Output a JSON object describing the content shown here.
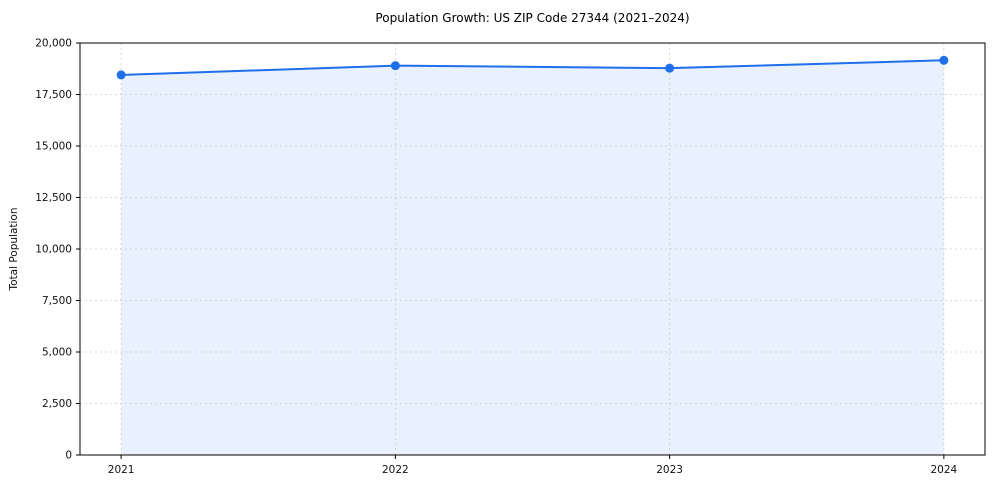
{
  "title": "Population Growth: US ZIP Code 27344 (2021–2024)",
  "chart_data": {
    "type": "line",
    "title": "Population Growth: US ZIP Code 27344 (2021–2024)",
    "x": [
      2021,
      2022,
      2023,
      2024
    ],
    "categories": [
      "2021",
      "2022",
      "2023",
      "2024"
    ],
    "series": [
      {
        "name": "Total Population",
        "values": [
          18450,
          18900,
          18780,
          19160
        ]
      }
    ],
    "xlabel": "",
    "ylabel": "Total Population",
    "ylim": [
      0,
      20000
    ],
    "yticks": [
      0,
      2500,
      5000,
      7500,
      10000,
      12500,
      15000,
      17500,
      20000
    ],
    "grid": true,
    "grid_style": "dashed",
    "legend": "none",
    "area_fill": true,
    "marker": "circle",
    "colors": {
      "line": "#1f6feb",
      "fill": "#e8f1fd",
      "grid": "#cccccc",
      "axis": "#000000",
      "tick_text": "#111111"
    }
  }
}
